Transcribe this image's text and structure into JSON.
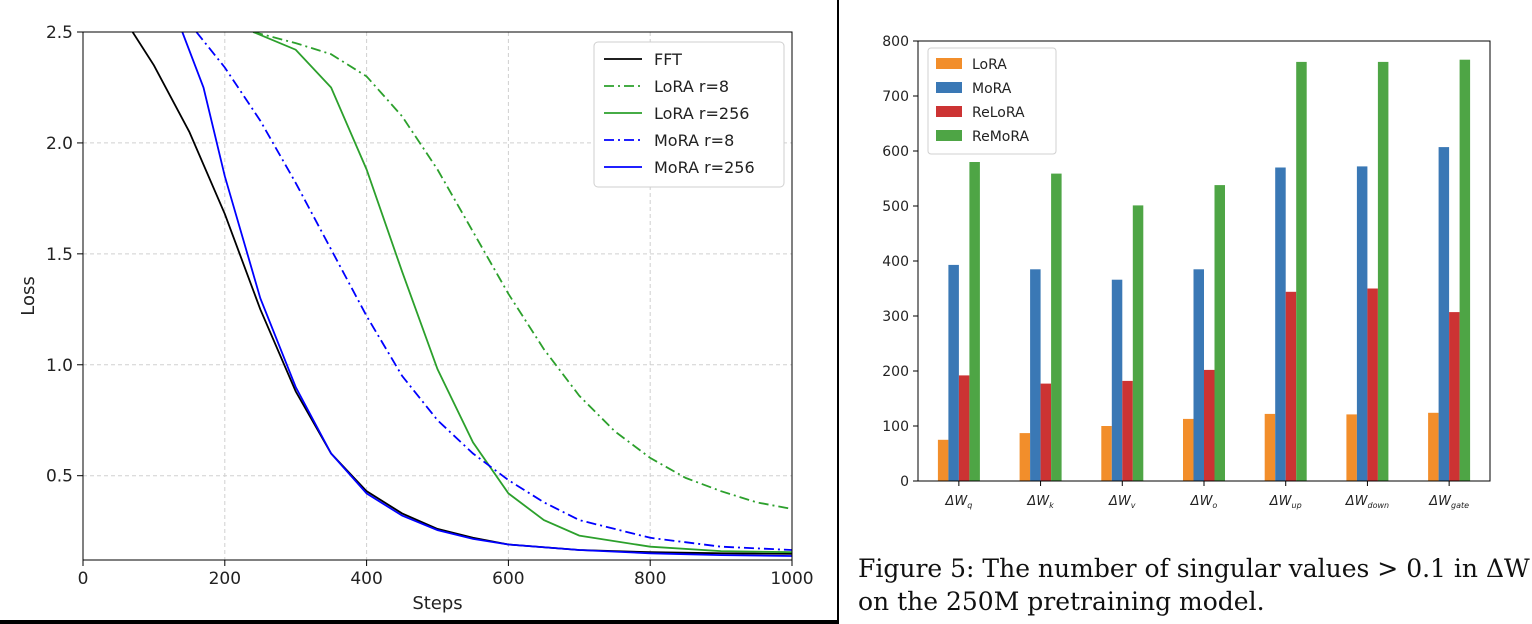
{
  "chart_data": [
    {
      "type": "line",
      "xlabel": "Steps",
      "ylabel": "Loss",
      "xlim": [
        0,
        1000
      ],
      "ylim": [
        0.12,
        2.5
      ],
      "xticks": [
        "0",
        "200",
        "400",
        "600",
        "800",
        "1000"
      ],
      "yticks": [
        "0.5",
        "1.0",
        "1.5",
        "2.0",
        "2.5"
      ],
      "grid": true,
      "legend_position": "top-right",
      "series": [
        {
          "name": "FFT",
          "color": "#000000",
          "style": "solid",
          "x": [
            70,
            100,
            150,
            200,
            250,
            300,
            350,
            400,
            450,
            500,
            550,
            600,
            700,
            800,
            900,
            1000
          ],
          "y": [
            2.5,
            2.35,
            2.05,
            1.68,
            1.25,
            0.88,
            0.6,
            0.43,
            0.33,
            0.26,
            0.22,
            0.19,
            0.165,
            0.155,
            0.15,
            0.148
          ]
        },
        {
          "name": "LoRA r=8",
          "color": "#2ca02c",
          "style": "dashdot",
          "x": [
            240,
            300,
            350,
            400,
            450,
            500,
            550,
            600,
            650,
            700,
            750,
            800,
            850,
            900,
            950,
            1000
          ],
          "y": [
            2.5,
            2.45,
            2.4,
            2.3,
            2.12,
            1.88,
            1.6,
            1.32,
            1.07,
            0.86,
            0.7,
            0.58,
            0.49,
            0.43,
            0.38,
            0.35
          ]
        },
        {
          "name": "LoRA r=256",
          "color": "#2ca02c",
          "style": "solid",
          "x": [
            240,
            300,
            350,
            400,
            450,
            500,
            550,
            600,
            650,
            700,
            800,
            900,
            1000
          ],
          "y": [
            2.5,
            2.42,
            2.25,
            1.88,
            1.42,
            0.98,
            0.65,
            0.42,
            0.3,
            0.23,
            0.18,
            0.16,
            0.155
          ]
        },
        {
          "name": "MoRA r=8",
          "color": "#0000ff",
          "style": "dashdot",
          "x": [
            160,
            200,
            250,
            300,
            350,
            400,
            450,
            500,
            550,
            600,
            650,
            700,
            800,
            900,
            1000
          ],
          "y": [
            2.5,
            2.34,
            2.1,
            1.82,
            1.52,
            1.22,
            0.95,
            0.75,
            0.6,
            0.48,
            0.38,
            0.3,
            0.22,
            0.18,
            0.165
          ]
        },
        {
          "name": "MoRA r=256",
          "color": "#0000ff",
          "style": "solid",
          "x": [
            140,
            170,
            200,
            250,
            300,
            350,
            400,
            450,
            500,
            550,
            600,
            700,
            800,
            900,
            1000
          ],
          "y": [
            2.5,
            2.25,
            1.85,
            1.3,
            0.9,
            0.6,
            0.42,
            0.32,
            0.255,
            0.215,
            0.19,
            0.165,
            0.15,
            0.142,
            0.138
          ]
        }
      ]
    },
    {
      "type": "bar",
      "ylim": [
        0,
        800
      ],
      "yticks": [
        "0",
        "100",
        "200",
        "300",
        "400",
        "500",
        "600",
        "700",
        "800"
      ],
      "categories": [
        "ΔWq",
        "ΔWk",
        "ΔWv",
        "ΔWo",
        "ΔWup",
        "ΔWdown",
        "ΔWgate"
      ],
      "category_labels": [
        {
          "main": "ΔW",
          "sub": "q"
        },
        {
          "main": "ΔW",
          "sub": "k"
        },
        {
          "main": "ΔW",
          "sub": "v"
        },
        {
          "main": "ΔW",
          "sub": "o"
        },
        {
          "main": "ΔW",
          "sub": "up"
        },
        {
          "main": "ΔW",
          "sub": "down"
        },
        {
          "main": "ΔW",
          "sub": "gate"
        }
      ],
      "legend_position": "top-left",
      "series": [
        {
          "name": "LoRA",
          "color": "#f28e2b",
          "values": [
            75,
            87,
            100,
            113,
            122,
            121,
            124
          ]
        },
        {
          "name": "MoRA",
          "color": "#3a78b5",
          "values": [
            393,
            385,
            366,
            385,
            570,
            572,
            607
          ]
        },
        {
          "name": "ReLoRA",
          "color": "#cc3333",
          "values": [
            192,
            177,
            182,
            202,
            344,
            350,
            307
          ]
        },
        {
          "name": "ReMoRA",
          "color": "#4ea545",
          "values": [
            580,
            559,
            501,
            538,
            762,
            762,
            766
          ]
        }
      ]
    }
  ],
  "caption": {
    "line1": "Figure 5: The number of singular values > 0.1 in ΔW",
    "line2": "on the 250M pretraining model."
  }
}
